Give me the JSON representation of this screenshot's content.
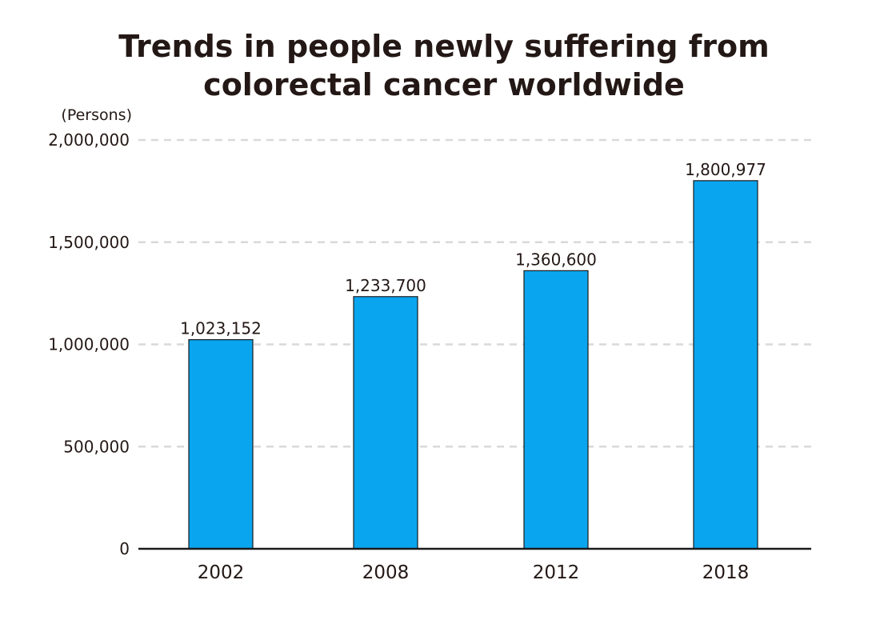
{
  "chart_data": {
    "type": "bar",
    "title_lines": [
      "Trends in people newly suffering from",
      "colorectal cancer worldwide"
    ],
    "ylabel": "(Persons)",
    "categories": [
      "2002",
      "2008",
      "2012",
      "2018"
    ],
    "values": [
      1023152,
      1233700,
      1360600,
      1800977
    ],
    "value_labels": [
      "1,023,152",
      "1,233,700",
      "1,360,600",
      "1,800,977"
    ],
    "ylim": [
      0,
      2000000
    ],
    "yticks": [
      0,
      500000,
      1000000,
      1500000,
      2000000
    ],
    "ytick_labels": [
      "0",
      "500,000",
      "1,000,000",
      "1,500,000",
      "2,000,000"
    ],
    "grid": "dashed horizontal",
    "colors": {
      "bar": "#0aa5ef",
      "bar_border": "#1a1a1a",
      "grid": "#d9d9d9",
      "axis": "#1a1a1a",
      "text": "#231815"
    }
  }
}
